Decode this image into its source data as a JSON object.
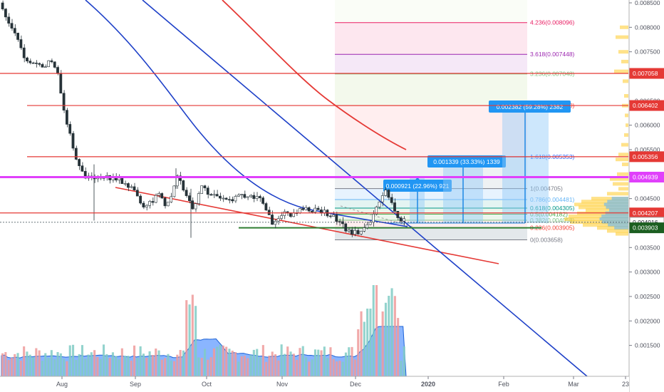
{
  "chart_data": {
    "type": "candlestick",
    "price_axis": {
      "ylim": [
        0.0015,
        0.0086
      ],
      "ticks": [
        "0.008500",
        "0.008000",
        "0.007500",
        "0.007000",
        "0.006500",
        "0.006000",
        "0.005500",
        "0.005000",
        "0.004500",
        "0.004000",
        "0.003500",
        "0.003000",
        "0.002500",
        "0.002000",
        "0.001500"
      ]
    },
    "time_axis": {
      "labels": [
        "Aug",
        "Sep",
        "Oct",
        "Nov",
        "Dec",
        "2020",
        "Feb",
        "Mar",
        "23"
      ]
    },
    "price_tags": [
      {
        "label": "0.007058",
        "value": 0.007058,
        "color": "#e53935"
      },
      {
        "label": "0.006402",
        "value": 0.006402,
        "color": "#e53935"
      },
      {
        "label": "0.005356",
        "value": 0.005356,
        "color": "#e53935"
      },
      {
        "label": "0.004939",
        "value": 0.004939,
        "color": "#e040fb"
      },
      {
        "label": "0.004207",
        "value": 0.004207,
        "color": "#e53935"
      },
      {
        "label": "0.004016",
        "value": 0.004016,
        "color": "#ffffff"
      },
      {
        "label": "0.003903",
        "value": 0.003903,
        "color": "#1b5e20"
      }
    ],
    "fib_levels": [
      {
        "label": "0(0.003658)",
        "value": 0.003658,
        "color": "#787b86"
      },
      {
        "label": "0.236(0.003905)",
        "value": 0.003905,
        "color": "#f44336"
      },
      {
        "label": "0.382(0.004058)",
        "value": 0.004058,
        "color": "#81c784"
      },
      {
        "label": "0.5(0.004182)",
        "value": 0.004182,
        "color": "#4caf50"
      },
      {
        "label": "0.618(0.004305)",
        "value": 0.004305,
        "color": "#009688"
      },
      {
        "label": "0.786(0.004481)",
        "value": 0.004481,
        "color": "#64b5f6"
      },
      {
        "label": "1(0.004705)",
        "value": 0.004705,
        "color": "#787b86"
      },
      {
        "label": "1.618(0.005353)",
        "value": 0.005353,
        "color": "#2962ff"
      },
      {
        "label": "2.618(0.006400)",
        "value": 0.0064,
        "color": "#f44336"
      },
      {
        "label": "3.236(0.007048)",
        "value": 0.007048,
        "color": "#81c784"
      },
      {
        "label": "3.618(0.007448)",
        "value": 0.007448,
        "color": "#9c27b0"
      },
      {
        "label": "4.236(0.008096)",
        "value": 0.008096,
        "color": "#e91e63"
      }
    ],
    "horizontal_lines": [
      {
        "value": 0.007058,
        "color": "#e53935",
        "from": "full"
      },
      {
        "value": 0.006402,
        "color": "#e53935",
        "from": "partial"
      },
      {
        "value": 0.005356,
        "color": "#e53935",
        "from": "partial"
      },
      {
        "value": 0.004939,
        "color": "#e040fb",
        "from": "full"
      },
      {
        "value": 0.004207,
        "color": "#e53935",
        "from": "full"
      }
    ],
    "projections": [
      {
        "label": "0.000921 (22.96%) 921"
      },
      {
        "label": "0.001339 (33.33%) 1339"
      },
      {
        "label": "0.002382 (59.28%) 2382"
      }
    ],
    "colors": {
      "up": "#26a69a",
      "down": "#ef5350",
      "ma_red": "#e53935",
      "ma_blue": "#1e40c8",
      "support_green": "#2e7d32",
      "volume_up": "#80cbc4",
      "volume_down": "#ef9a9a",
      "volume_ma": "#2979ff",
      "volume_profile": "#ffca28"
    }
  }
}
